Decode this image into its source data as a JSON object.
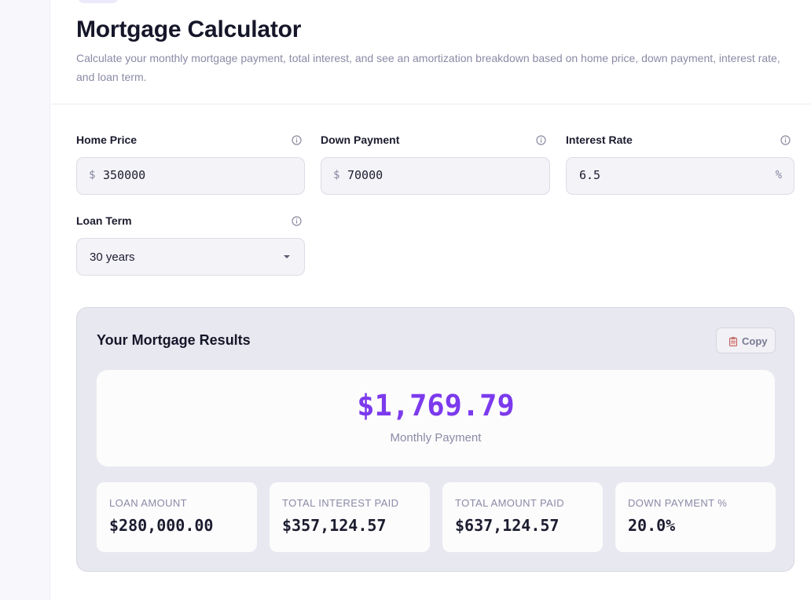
{
  "page": {
    "title": "Mortgage Calculator",
    "subtitle": "Calculate your monthly mortgage payment, total interest, and see an amortization breakdown based on home price, down payment, interest rate, and loan term."
  },
  "form": {
    "home_price": {
      "label": "Home Price",
      "prefix": "$",
      "value": "350000"
    },
    "down_payment": {
      "label": "Down Payment",
      "prefix": "$",
      "value": "70000"
    },
    "interest_rate": {
      "label": "Interest Rate",
      "value": "6.5",
      "suffix": "%"
    },
    "loan_term": {
      "label": "Loan Term",
      "selected": "30 years"
    }
  },
  "results": {
    "title": "Your Mortgage Results",
    "copy_label": "Copy",
    "monthly_payment": "$1,769.79",
    "monthly_payment_label": "Monthly Payment",
    "stats": [
      {
        "label": "LOAN AMOUNT",
        "value": "$280,000.00"
      },
      {
        "label": "TOTAL INTEREST PAID",
        "value": "$357,124.57"
      },
      {
        "label": "TOTAL AMOUNT PAID",
        "value": "$637,124.57"
      },
      {
        "label": "DOWN PAYMENT %",
        "value": "20.0%"
      }
    ]
  },
  "colors": {
    "accent": "#7c3aed",
    "muted_text": "#8a8aa6",
    "input_bg": "#f3f3f8",
    "panel_bg": "#e8e8f0"
  },
  "icons": {
    "field_help": "info-icon",
    "copy": "clipboard-icon",
    "select": "chevron-down-icon"
  }
}
